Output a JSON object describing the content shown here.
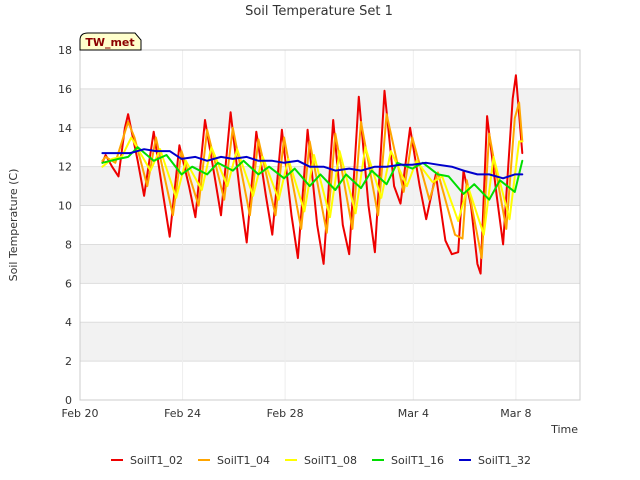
{
  "chart_data": {
    "type": "line",
    "title": "Soil Temperature Set 1",
    "xlabel": "Time",
    "ylabel": "Soil Temperature (C)",
    "badge": "TW_met",
    "xlim": [
      "2024-02-20T00:00",
      "2024-03-10T12:00"
    ],
    "ylim": [
      0,
      18
    ],
    "x_ticks": [
      {
        "value": "2024-02-20T00:00",
        "label": "Feb 20"
      },
      {
        "value": "2024-02-24T00:00",
        "label": "Feb 24"
      },
      {
        "value": "2024-02-28T00:00",
        "label": "Feb 28"
      },
      {
        "value": "2024-03-04T00:00",
        "label": "Mar 4"
      },
      {
        "value": "2024-03-08T00:00",
        "label": "Mar 8"
      }
    ],
    "y_ticks": [
      0,
      2,
      4,
      6,
      8,
      10,
      12,
      14,
      16,
      18
    ],
    "grid": true,
    "legend_position": "bottom",
    "series": [
      {
        "name": "SoilT1_02",
        "color": "#ee0000",
        "data": [
          [
            "2024-02-20T21:00",
            12.2
          ],
          [
            "2024-02-21T00:00",
            12.6
          ],
          [
            "2024-02-21T06:00",
            12.0
          ],
          [
            "2024-02-21T12:00",
            11.5
          ],
          [
            "2024-02-21T18:00",
            14.0
          ],
          [
            "2024-02-21T21:00",
            14.7
          ],
          [
            "2024-02-22T06:00",
            12.3
          ],
          [
            "2024-02-22T12:00",
            10.5
          ],
          [
            "2024-02-22T21:00",
            13.8
          ],
          [
            "2024-02-23T06:00",
            10.5
          ],
          [
            "2024-02-23T12:00",
            8.4
          ],
          [
            "2024-02-23T21:00",
            13.1
          ],
          [
            "2024-02-24T06:00",
            11.0
          ],
          [
            "2024-02-24T12:00",
            9.4
          ],
          [
            "2024-02-24T21:00",
            14.4
          ],
          [
            "2024-02-25T06:00",
            11.5
          ],
          [
            "2024-02-25T12:00",
            9.5
          ],
          [
            "2024-02-25T21:00",
            14.8
          ],
          [
            "2024-02-26T06:00",
            10.5
          ],
          [
            "2024-02-26T12:00",
            8.1
          ],
          [
            "2024-02-26T21:00",
            13.8
          ],
          [
            "2024-02-27T06:00",
            10.5
          ],
          [
            "2024-02-27T12:00",
            8.5
          ],
          [
            "2024-02-27T21:00",
            13.9
          ],
          [
            "2024-02-28T06:00",
            9.5
          ],
          [
            "2024-02-28T12:00",
            7.3
          ],
          [
            "2024-02-28T21:00",
            13.9
          ],
          [
            "2024-02-29T06:00",
            9.0
          ],
          [
            "2024-02-29T12:00",
            7.0
          ],
          [
            "2024-02-29T21:00",
            14.4
          ],
          [
            "2024-03-01T06:00",
            9.0
          ],
          [
            "2024-03-01T12:00",
            7.5
          ],
          [
            "2024-03-01T21:00",
            15.6
          ],
          [
            "2024-03-02T06:00",
            10.0
          ],
          [
            "2024-03-02T12:00",
            7.6
          ],
          [
            "2024-03-02T21:00",
            15.9
          ],
          [
            "2024-03-03T06:00",
            11.0
          ],
          [
            "2024-03-03T12:00",
            10.1
          ],
          [
            "2024-03-03T21:00",
            14.0
          ],
          [
            "2024-03-04T06:00",
            11.0
          ],
          [
            "2024-03-04T12:00",
            9.3
          ],
          [
            "2024-03-04T21:00",
            11.6
          ],
          [
            "2024-03-05T06:00",
            8.2
          ],
          [
            "2024-03-05T12:00",
            7.5
          ],
          [
            "2024-03-05T18:00",
            7.6
          ],
          [
            "2024-03-05T23:00",
            11.8
          ],
          [
            "2024-03-06T06:00",
            10.0
          ],
          [
            "2024-03-06T12:00",
            7.0
          ],
          [
            "2024-03-06T15:00",
            6.5
          ],
          [
            "2024-03-06T21:00",
            14.6
          ],
          [
            "2024-03-07T06:00",
            10.5
          ],
          [
            "2024-03-07T12:00",
            8.0
          ],
          [
            "2024-03-07T21:00",
            15.5
          ],
          [
            "2024-03-08T00:00",
            16.7
          ],
          [
            "2024-03-08T06:00",
            12.7
          ]
        ]
      },
      {
        "name": "SoilT1_04",
        "color": "#ffa500",
        "data": [
          [
            "2024-02-20T21:00",
            12.3
          ],
          [
            "2024-02-21T00:00",
            12.5
          ],
          [
            "2024-02-21T09:00",
            12.2
          ],
          [
            "2024-02-21T21:00",
            14.3
          ],
          [
            "2024-02-22T03:00",
            13.5
          ],
          [
            "2024-02-22T15:00",
            11.0
          ],
          [
            "2024-02-22T23:00",
            13.5
          ],
          [
            "2024-02-23T15:00",
            9.5
          ],
          [
            "2024-02-23T23:00",
            12.8
          ],
          [
            "2024-02-24T15:00",
            10.0
          ],
          [
            "2024-02-24T23:00",
            13.9
          ],
          [
            "2024-02-25T15:00",
            10.3
          ],
          [
            "2024-02-25T23:00",
            14.0
          ],
          [
            "2024-02-26T15:00",
            9.5
          ],
          [
            "2024-02-26T23:00",
            13.4
          ],
          [
            "2024-02-27T15:00",
            9.5
          ],
          [
            "2024-02-27T23:00",
            13.5
          ],
          [
            "2024-02-28T15:00",
            8.8
          ],
          [
            "2024-02-28T23:00",
            13.3
          ],
          [
            "2024-02-29T15:00",
            8.6
          ],
          [
            "2024-02-29T23:00",
            13.7
          ],
          [
            "2024-03-01T15:00",
            8.8
          ],
          [
            "2024-03-01T23:00",
            14.3
          ],
          [
            "2024-03-02T15:00",
            9.5
          ],
          [
            "2024-03-02T23:00",
            14.7
          ],
          [
            "2024-03-03T15:00",
            10.7
          ],
          [
            "2024-03-03T23:00",
            13.5
          ],
          [
            "2024-03-04T15:00",
            10.3
          ],
          [
            "2024-03-04T23:00",
            11.7
          ],
          [
            "2024-03-05T15:00",
            8.5
          ],
          [
            "2024-03-05T22:00",
            8.3
          ],
          [
            "2024-03-06T02:00",
            11.3
          ],
          [
            "2024-03-06T16:00",
            7.3
          ],
          [
            "2024-03-06T23:00",
            13.7
          ],
          [
            "2024-03-07T15:00",
            8.8
          ],
          [
            "2024-03-07T23:00",
            14.5
          ],
          [
            "2024-03-08T03:00",
            15.3
          ],
          [
            "2024-03-08T06:00",
            13.3
          ]
        ]
      },
      {
        "name": "SoilT1_08",
        "color": "#ffff00",
        "data": [
          [
            "2024-02-20T21:00",
            12.0
          ],
          [
            "2024-02-21T06:00",
            12.4
          ],
          [
            "2024-02-21T15:00",
            12.5
          ],
          [
            "2024-02-22T00:00",
            13.5
          ],
          [
            "2024-02-22T18:00",
            11.8
          ],
          [
            "2024-02-23T03:00",
            12.9
          ],
          [
            "2024-02-23T18:00",
            10.4
          ],
          [
            "2024-02-24T03:00",
            12.3
          ],
          [
            "2024-02-24T18:00",
            10.8
          ],
          [
            "2024-02-25T03:00",
            13.0
          ],
          [
            "2024-02-25T18:00",
            11.0
          ],
          [
            "2024-02-26T03:00",
            12.9
          ],
          [
            "2024-02-26T18:00",
            10.5
          ],
          [
            "2024-02-27T03:00",
            12.5
          ],
          [
            "2024-02-27T18:00",
            10.3
          ],
          [
            "2024-02-28T03:00",
            12.4
          ],
          [
            "2024-02-28T18:00",
            9.7
          ],
          [
            "2024-02-29T03:00",
            12.6
          ],
          [
            "2024-02-29T18:00",
            9.4
          ],
          [
            "2024-03-01T03:00",
            12.8
          ],
          [
            "2024-03-01T18:00",
            9.6
          ],
          [
            "2024-03-02T03:00",
            13.0
          ],
          [
            "2024-03-02T18:00",
            10.4
          ],
          [
            "2024-03-03T03:00",
            12.8
          ],
          [
            "2024-03-03T18:00",
            11.0
          ],
          [
            "2024-03-04T03:00",
            12.3
          ],
          [
            "2024-03-04T18:00",
            11.2
          ],
          [
            "2024-03-05T03:00",
            11.5
          ],
          [
            "2024-03-05T18:00",
            9.2
          ],
          [
            "2024-03-06T03:00",
            11.0
          ],
          [
            "2024-03-06T18:00",
            8.5
          ],
          [
            "2024-03-07T03:00",
            12.5
          ],
          [
            "2024-03-07T18:00",
            9.3
          ],
          [
            "2024-03-08T03:00",
            13.3
          ],
          [
            "2024-03-08T06:00",
            13.3
          ]
        ]
      },
      {
        "name": "SoilT1_16",
        "color": "#00dd00",
        "data": [
          [
            "2024-02-20T21:00",
            12.2
          ],
          [
            "2024-02-21T12:00",
            12.4
          ],
          [
            "2024-02-21T21:00",
            12.5
          ],
          [
            "2024-02-22T06:00",
            13.0
          ],
          [
            "2024-02-22T21:00",
            12.3
          ],
          [
            "2024-02-23T09:00",
            12.6
          ],
          [
            "2024-02-23T23:00",
            11.6
          ],
          [
            "2024-02-24T09:00",
            12.0
          ],
          [
            "2024-02-24T23:00",
            11.6
          ],
          [
            "2024-02-25T09:00",
            12.2
          ],
          [
            "2024-02-25T23:00",
            11.8
          ],
          [
            "2024-02-26T09:00",
            12.3
          ],
          [
            "2024-02-26T23:00",
            11.6
          ],
          [
            "2024-02-27T09:00",
            12.0
          ],
          [
            "2024-02-27T23:00",
            11.4
          ],
          [
            "2024-02-28T09:00",
            11.9
          ],
          [
            "2024-02-28T23:00",
            11.0
          ],
          [
            "2024-02-29T09:00",
            11.6
          ],
          [
            "2024-02-29T23:00",
            10.8
          ],
          [
            "2024-03-01T09:00",
            11.6
          ],
          [
            "2024-03-01T23:00",
            10.9
          ],
          [
            "2024-03-02T09:00",
            11.8
          ],
          [
            "2024-03-02T23:00",
            11.1
          ],
          [
            "2024-03-03T09:00",
            12.2
          ],
          [
            "2024-03-03T23:00",
            11.9
          ],
          [
            "2024-03-04T09:00",
            12.2
          ],
          [
            "2024-03-04T23:00",
            11.6
          ],
          [
            "2024-03-05T09:00",
            11.5
          ],
          [
            "2024-03-05T23:00",
            10.6
          ],
          [
            "2024-03-06T09:00",
            11.1
          ],
          [
            "2024-03-06T23:00",
            10.3
          ],
          [
            "2024-03-07T09:00",
            11.3
          ],
          [
            "2024-03-07T23:00",
            10.7
          ],
          [
            "2024-03-08T06:00",
            12.3
          ]
        ]
      },
      {
        "name": "SoilT1_32",
        "color": "#0000cc",
        "data": [
          [
            "2024-02-20T21:00",
            12.7
          ],
          [
            "2024-02-21T12:00",
            12.7
          ],
          [
            "2024-02-21T23:00",
            12.7
          ],
          [
            "2024-02-22T12:00",
            12.9
          ],
          [
            "2024-02-22T23:00",
            12.8
          ],
          [
            "2024-02-23T12:00",
            12.8
          ],
          [
            "2024-02-23T23:00",
            12.4
          ],
          [
            "2024-02-24T12:00",
            12.5
          ],
          [
            "2024-02-24T23:00",
            12.3
          ],
          [
            "2024-02-25T12:00",
            12.5
          ],
          [
            "2024-02-25T23:00",
            12.4
          ],
          [
            "2024-02-26T12:00",
            12.5
          ],
          [
            "2024-02-26T23:00",
            12.3
          ],
          [
            "2024-02-27T12:00",
            12.3
          ],
          [
            "2024-02-27T23:00",
            12.2
          ],
          [
            "2024-02-28T12:00",
            12.3
          ],
          [
            "2024-02-28T23:00",
            12.0
          ],
          [
            "2024-02-29T12:00",
            12.0
          ],
          [
            "2024-02-29T23:00",
            11.8
          ],
          [
            "2024-03-01T12:00",
            11.9
          ],
          [
            "2024-03-01T23:00",
            11.8
          ],
          [
            "2024-03-02T12:00",
            12.0
          ],
          [
            "2024-03-02T23:00",
            12.0
          ],
          [
            "2024-03-03T12:00",
            12.1
          ],
          [
            "2024-03-03T23:00",
            12.1
          ],
          [
            "2024-03-04T12:00",
            12.2
          ],
          [
            "2024-03-04T23:00",
            12.1
          ],
          [
            "2024-03-05T12:00",
            12.0
          ],
          [
            "2024-03-05T23:00",
            11.8
          ],
          [
            "2024-03-06T12:00",
            11.6
          ],
          [
            "2024-03-06T23:00",
            11.6
          ],
          [
            "2024-03-07T12:00",
            11.4
          ],
          [
            "2024-03-07T23:00",
            11.6
          ],
          [
            "2024-03-08T06:00",
            11.6
          ]
        ]
      }
    ]
  }
}
